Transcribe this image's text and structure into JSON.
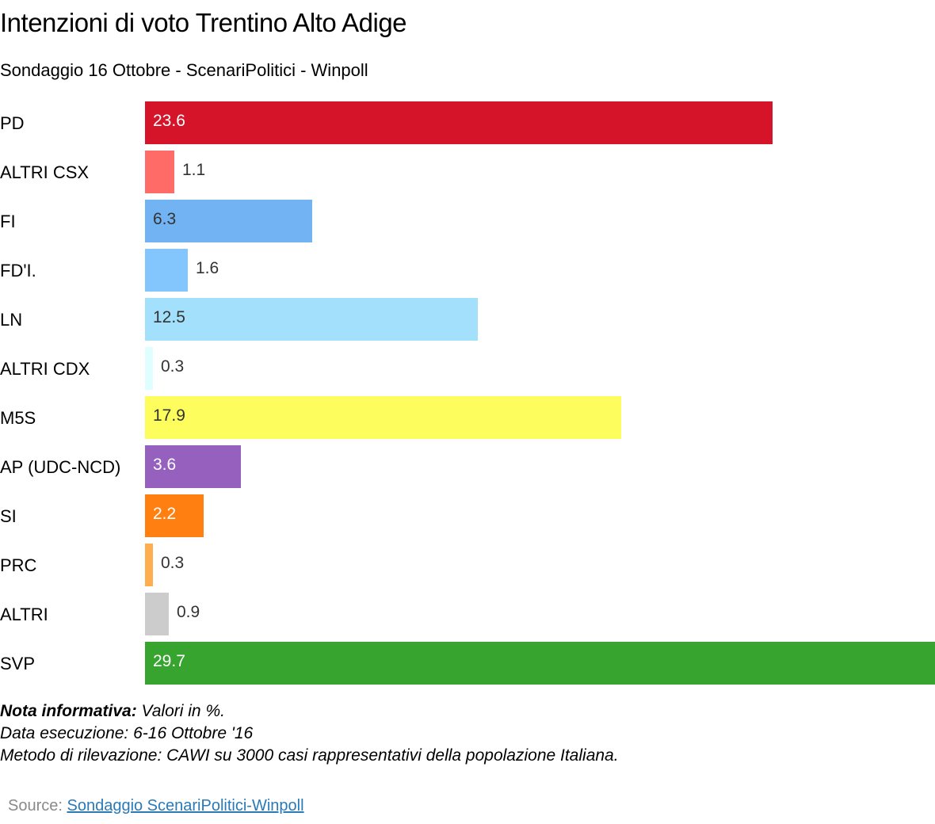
{
  "chart_data": {
    "type": "bar",
    "orientation": "horizontal",
    "title": "Intenzioni di voto Trentino Alto Adige",
    "subtitle": "Sondaggio 16 Ottobre - ScenariPolitici - Winpoll",
    "categories": [
      "PD",
      "ALTRI CSX",
      "FI",
      "FD'I.",
      "LN",
      "ALTRI CDX",
      "M5S",
      "AP (UDC-NCD)",
      "SI",
      "PRC",
      "ALTRI",
      "SVP"
    ],
    "values": [
      23.6,
      1.1,
      6.3,
      1.6,
      12.5,
      0.3,
      17.9,
      3.6,
      2.2,
      0.3,
      0.9,
      29.7
    ],
    "value_labels": [
      "23.6",
      "1.1",
      "6.3",
      "1.6",
      "12.5",
      "0.3",
      "17.9",
      "3.6",
      "2.2",
      "0.3",
      "0.9",
      "29.7"
    ],
    "colors": [
      "#d51429",
      "#ff6b66",
      "#72b3f3",
      "#83c6fd",
      "#a3e0fc",
      "#dffeff",
      "#fdfe5e",
      "#9661be",
      "#ff7f11",
      "#feae4e",
      "#cccccc",
      "#36a42f"
    ],
    "label_colors": [
      "#ffffff",
      "#333333",
      "#333333",
      "#333333",
      "#333333",
      "#333333",
      "#333333",
      "#ffffff",
      "#ffffff",
      "#333333",
      "#333333",
      "#ffffff"
    ],
    "xlim": [
      0,
      29.7
    ],
    "grid": false,
    "legend": "none"
  },
  "notes": {
    "line1_bold": "Nota informativa:",
    "line1_rest": " Valori in %.",
    "line2": "Data esecuzione: 6-16  Ottobre '16",
    "line3": "Metodo di rilevazione: CAWI su 3000 casi rappresentativi della popolazione Italiana."
  },
  "source": {
    "prefix": "Source: ",
    "link_text": "Sondaggio ScenariPolitici-Winpoll"
  }
}
